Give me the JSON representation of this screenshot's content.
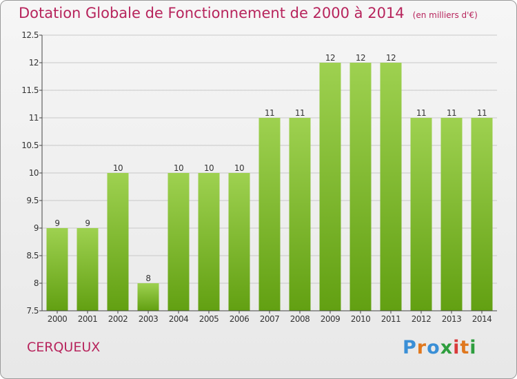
{
  "title": "Dotation Globale de Fonctionnement de 2000 à 2014",
  "unit_note": "(en milliers d'€)",
  "commune": "CERQUEUX",
  "brand": {
    "letters": [
      "P",
      "r",
      "o",
      "x",
      "i",
      "t",
      "i"
    ],
    "colors": [
      "#3a8fd6",
      "#e0781e",
      "#3a8fd6",
      "#2e9e3e",
      "#d93a3a",
      "#e0781e",
      "#2e9e3e"
    ]
  },
  "colors": {
    "accent": "#b7245c",
    "bar_light": "#9ed150",
    "bar_dark": "#62a012",
    "grid": "#c8c8c8",
    "axis": "#444444"
  },
  "chart_data": {
    "type": "bar",
    "title": "Dotation Globale de Fonctionnement de 2000 à 2014",
    "xlabel": "",
    "ylabel": "",
    "ylim": [
      7.5,
      12.5
    ],
    "yticks": [
      "7.5",
      "8",
      "8.5",
      "9",
      "9.5",
      "10",
      "10.5",
      "11",
      "11.5",
      "12",
      "12.5"
    ],
    "categories": [
      "2000",
      "2001",
      "2002",
      "2003",
      "2004",
      "2005",
      "2006",
      "2007",
      "2008",
      "2009",
      "2010",
      "2011",
      "2012",
      "2013",
      "2014"
    ],
    "values": [
      9,
      9,
      10,
      8,
      10,
      10,
      10,
      11,
      11,
      12,
      12,
      12,
      11,
      11,
      11
    ],
    "labels": [
      "9",
      "9",
      "10",
      "8",
      "10",
      "10",
      "10",
      "11",
      "11",
      "12",
      "12",
      "12",
      "11",
      "11",
      "11"
    ],
    "grid": true
  }
}
